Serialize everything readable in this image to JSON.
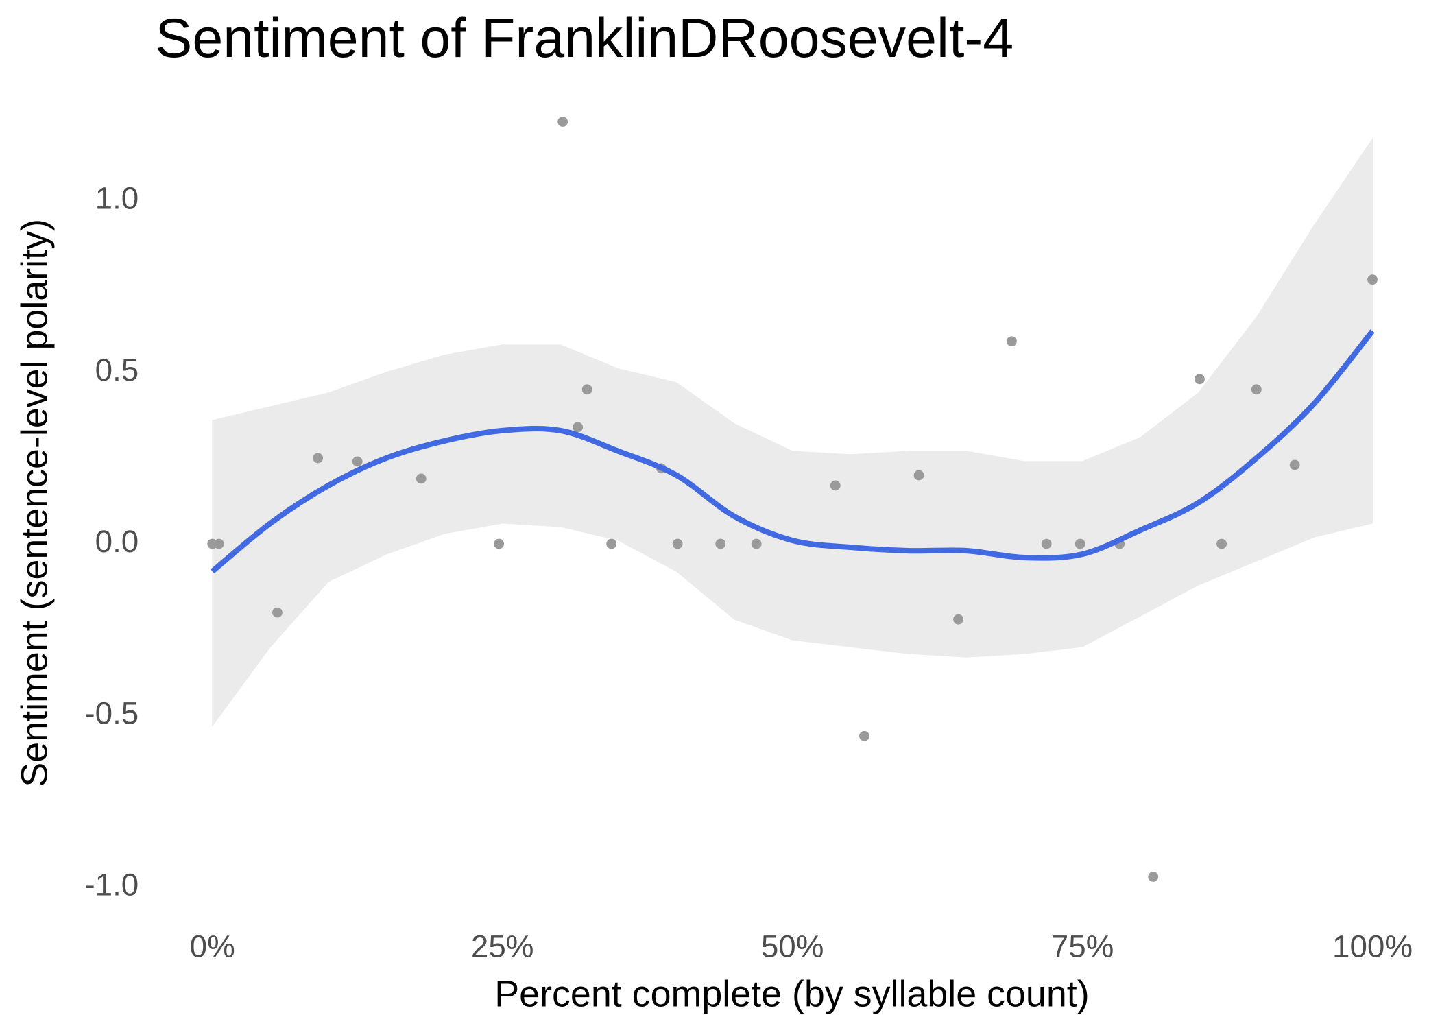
{
  "chart_data": {
    "type": "scatter",
    "title": "Sentiment of FranklinDRoosevelt-4",
    "x_label": "Percent complete (by syllable count)",
    "y_label": "Sentiment (sentence-level polarity)",
    "x": [
      0,
      0.56,
      5.6,
      9.1,
      12.5,
      18.0,
      24.7,
      30.2,
      31.5,
      32.3,
      34.4,
      38.7,
      40.1,
      43.8,
      46.9,
      53.7,
      56.2,
      60.9,
      64.3,
      68.9,
      71.9,
      74.8,
      78.2,
      81.1,
      85.1,
      87.0,
      90.0,
      93.3,
      100
    ],
    "values": [
      0,
      0,
      -0.2,
      0.25,
      0.24,
      0.19,
      0,
      1.23,
      0.34,
      0.45,
      0,
      0.22,
      0,
      0,
      0,
      0.17,
      -0.56,
      0.2,
      -0.22,
      0.59,
      0,
      0,
      0,
      -0.97,
      0.48,
      0,
      0.45,
      0.23,
      0.77
    ],
    "color": "#9a9a9a",
    "smooth": {
      "color": "#4169e1",
      "band_color": "#ebebeb",
      "x": [
        0,
        5,
        10,
        15,
        20,
        25,
        30,
        35,
        40,
        45,
        50,
        55,
        60,
        65,
        70,
        75,
        80,
        85,
        90,
        95,
        100
      ],
      "values": [
        -0.08,
        0.06,
        0.17,
        0.25,
        0.3,
        0.33,
        0.33,
        0.27,
        0.2,
        0.08,
        0.01,
        -0.01,
        -0.02,
        -0.02,
        -0.04,
        -0.03,
        0.04,
        0.12,
        0.25,
        0.41,
        0.62
      ],
      "lower": [
        -0.53,
        -0.3,
        -0.11,
        -0.03,
        0.03,
        0.06,
        0.05,
        0.01,
        -0.08,
        -0.22,
        -0.28,
        -0.3,
        -0.32,
        -0.33,
        -0.32,
        -0.3,
        -0.21,
        -0.12,
        -0.05,
        0.02,
        0.06
      ],
      "upper": [
        0.36,
        0.4,
        0.44,
        0.5,
        0.55,
        0.58,
        0.58,
        0.51,
        0.47,
        0.35,
        0.27,
        0.26,
        0.27,
        0.27,
        0.24,
        0.24,
        0.31,
        0.44,
        0.66,
        0.93,
        1.18
      ]
    },
    "xlim": [
      -5,
      105
    ],
    "ylim": [
      -1.08,
      1.34
    ],
    "xticks": [
      {
        "value": 0,
        "label": "0%"
      },
      {
        "value": 25,
        "label": "25%"
      },
      {
        "value": 50,
        "label": "50%"
      },
      {
        "value": 75,
        "label": "75%"
      },
      {
        "value": 100,
        "label": "100%"
      }
    ],
    "yticks": [
      {
        "value": -1,
        "label": "-1.0"
      },
      {
        "value": -0.5,
        "label": "-0.5"
      },
      {
        "value": 0,
        "label": "0.0"
      },
      {
        "value": 0.5,
        "label": "0.5"
      },
      {
        "value": 1,
        "label": "1.0"
      }
    ],
    "grid": false
  }
}
